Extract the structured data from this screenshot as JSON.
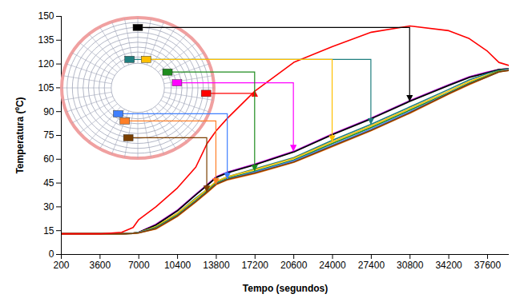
{
  "chart_data": {
    "type": "line",
    "xlabel": "Tempo (segundos)",
    "ylabel": "Temperatura (ºC)",
    "x": [
      200,
      3600,
      5500,
      6500,
      7000,
      8500,
      10400,
      12000,
      13000,
      13800,
      14800,
      17200,
      20600,
      24000,
      27400,
      30800,
      34200,
      36000,
      37600,
      38600,
      39500
    ],
    "series": [
      {
        "color": "#ff0000",
        "values": [
          13,
          13,
          14,
          17,
          22,
          30,
          42,
          55,
          70,
          78,
          86,
          103,
          121,
          131,
          140,
          144,
          141,
          136,
          128,
          121,
          119
        ]
      },
      {
        "color": "#ff00ff",
        "values": [
          13,
          13,
          13,
          13.5,
          14,
          19,
          28,
          38,
          44,
          49,
          52,
          57,
          65,
          76,
          86,
          97,
          107,
          112,
          115,
          116.5,
          117
        ]
      },
      {
        "color": "#7030a0",
        "values": [
          13,
          13,
          13,
          13.5,
          14,
          18.8,
          27.8,
          37.8,
          43.8,
          48.8,
          51.8,
          56.8,
          64.8,
          75.8,
          85.8,
          96.8,
          106.8,
          111.8,
          114.8,
          116.5,
          117
        ]
      },
      {
        "color": "#000000",
        "values": [
          13,
          13,
          13,
          13.5,
          14,
          18.5,
          27.5,
          37.5,
          43.5,
          48.5,
          51.5,
          56.5,
          64.5,
          75.5,
          85.5,
          96.5,
          106.5,
          111.5,
          114.5,
          116.5,
          117
        ]
      },
      {
        "color": "#1f7f7f",
        "values": [
          13,
          13,
          13,
          13.4,
          13.9,
          17.5,
          26,
          35.5,
          41,
          46,
          49,
          54,
          61,
          72,
          82,
          93,
          104,
          110,
          114,
          116,
          117
        ]
      },
      {
        "color": "#ffc000",
        "values": [
          13,
          13,
          13,
          13.4,
          13.9,
          17.5,
          26,
          35,
          41,
          46,
          49,
          53.5,
          60.5,
          71,
          81,
          92,
          103,
          109,
          113,
          115.5,
          116.5
        ]
      },
      {
        "color": "#1e8c1e",
        "values": [
          13,
          13,
          13,
          13.3,
          13.8,
          17,
          25,
          34,
          40,
          45,
          48,
          52.5,
          59.5,
          70,
          80,
          91,
          102,
          108,
          112.5,
          115.5,
          116.5
        ]
      },
      {
        "color": "#3f7fff",
        "values": [
          13,
          13,
          13,
          13.3,
          13.8,
          16.5,
          24.5,
          33.5,
          39.5,
          44.5,
          47.5,
          52,
          59,
          69,
          79,
          90,
          101.5,
          107.5,
          112,
          115,
          116.5
        ]
      },
      {
        "color": "#ff7f27",
        "values": [
          13,
          13,
          13,
          13.2,
          13.6,
          16,
          24,
          33,
          39,
          44,
          47,
          51,
          58,
          68,
          78,
          89,
          101,
          107,
          112,
          115,
          116
        ]
      },
      {
        "color": "#7b3f00",
        "values": [
          13,
          13,
          13,
          13.2,
          13.6,
          16.3,
          24.3,
          33.3,
          39.3,
          44.3,
          47.3,
          51.3,
          58.3,
          68.3,
          78.3,
          89.3,
          101.3,
          107.3,
          112,
          115,
          116
        ]
      }
    ],
    "xlim": [
      200,
      39500
    ],
    "xticks": [
      200,
      3600,
      7000,
      10400,
      13800,
      17200,
      20600,
      24000,
      27400,
      30800,
      34200,
      37600
    ],
    "ylim": [
      0,
      150
    ],
    "yticks": [
      0,
      15,
      30,
      45,
      60,
      75,
      90,
      105,
      120,
      135,
      150
    ],
    "grid": false
  }
}
